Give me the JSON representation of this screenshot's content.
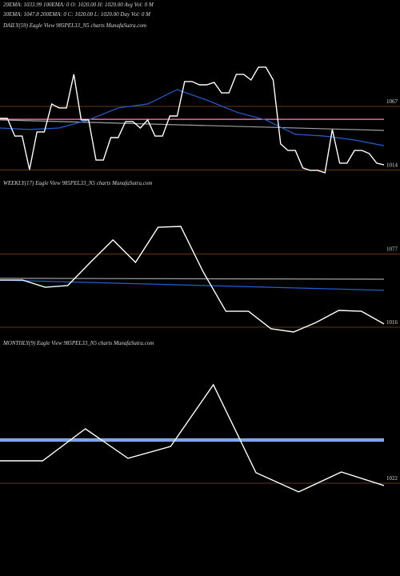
{
  "header": {
    "lines": [
      "20EMA: 1033.99     100EMA: 0     O: 1020.00     H: 1020.00     Avg Vol: 0  M",
      "30EMA: 1047.8     200EMA: 0     C: 1020.00     L: 1020.00     Day Vol: 0  M"
    ]
  },
  "chart_data": [
    {
      "type": "line",
      "title": "DAILY(59) Eagle   View   985PEL33_N5 charts MunafaSutra.com",
      "ylim": [
        1009,
        1129
      ],
      "yticks": [
        1067,
        1014
      ],
      "grid": true,
      "series": [
        {
          "color": "#a0a0a0",
          "values": [
            1055.7,
            1047
          ]
        },
        {
          "color": "#ff80c0",
          "values": [
            1056.3,
            1056.3
          ]
        },
        {
          "color": "#1f5fd6",
          "values": [
            1049,
            1047.7,
            1049,
            1055.7,
            1065.7,
            1069,
            1081,
            1072.3,
            1062.3,
            1055.7,
            1043.7,
            1042.3,
            1039,
            1034.3
          ]
        },
        {
          "color": "#ffffff",
          "values": [
            1057,
            1057,
            1042.3,
            1042.3,
            1014.3,
            1045.7,
            1045.7,
            1069,
            1065.7,
            1065.7,
            1093.7,
            1055.7,
            1055.7,
            1022.3,
            1022.3,
            1041,
            1041,
            1054.3,
            1054.3,
            1049,
            1055.7,
            1042.3,
            1042.3,
            1059,
            1059,
            1087.7,
            1087.7,
            1085,
            1085,
            1087,
            1078.3,
            1078.3,
            1093.7,
            1093.7,
            1089,
            1099.7,
            1099.7,
            1089,
            1035.7,
            1030.3,
            1030.3,
            1015.7,
            1013.7,
            1013.7,
            1011.7,
            1047.7,
            1019.7,
            1019.7,
            1030.3,
            1030.3,
            1027.7,
            1019.7,
            1018.3
          ]
        }
      ]
    },
    {
      "type": "line",
      "title": "WEEKLY(17) Eagle   View   985PEL33_N5 charts MunafaSutra.com",
      "ylim": [
        1010,
        1138
      ],
      "yticks": [
        1077,
        1016
      ],
      "grid": true,
      "series": [
        {
          "color": "#a0a0a0",
          "values": [
            1056.7,
            1056
          ]
        },
        {
          "color": "#1f5fd6",
          "values": [
            1055.3,
            1046.7
          ]
        },
        {
          "color": "#ffffff",
          "values": [
            1055.3,
            1055.3,
            1049.3,
            1050.7,
            1070,
            1088.7,
            1070,
            1099.3,
            1100,
            1062,
            1029.3,
            1029.3,
            1014.7,
            1012,
            1020,
            1030,
            1029.3,
            1018.7
          ]
        }
      ]
    },
    {
      "type": "line",
      "title": "MONTHLY(9) Eagle   View   985PEL33_N5 charts MunafaSutra.com",
      "ylim": [
        950,
        1152.5
      ],
      "yticks": [
        1022
      ],
      "grid": true,
      "series": [
        {
          "color": "#4f86f0",
          "values": [
            1062.5,
            1062.5
          ]
        },
        {
          "color": "#ffffff",
          "values": [
            1043,
            1043,
            1073,
            1045.3,
            1056.5,
            1114.3,
            1031.8,
            1013.8,
            1032.5,
            1019.8
          ]
        }
      ]
    }
  ]
}
